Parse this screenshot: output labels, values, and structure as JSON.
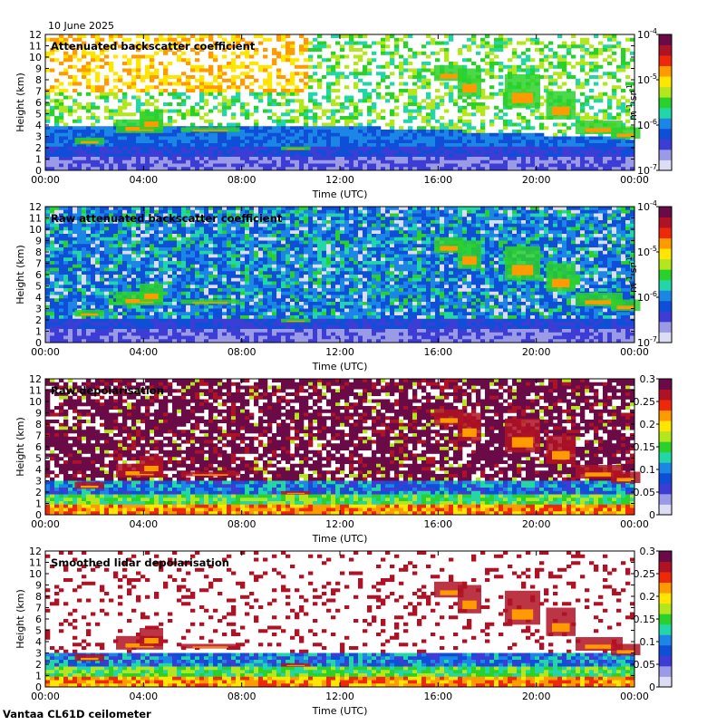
{
  "date_label": "10 June 2025",
  "footer_label": "Vantaa CL61D ceilometer",
  "chart_data": [
    {
      "type": "heatmap",
      "title": "Attenuated backscatter coefficient",
      "xlabel": "Time (UTC)",
      "ylabel": "Height (km)",
      "xticks": [
        "00:00",
        "04:00",
        "08:00",
        "12:00",
        "16:00",
        "20:00",
        "00:00"
      ],
      "yticks": [
        0,
        1,
        2,
        3,
        4,
        5,
        6,
        7,
        8,
        9,
        10,
        11,
        12
      ],
      "ylim": [
        0,
        12
      ],
      "colorbar": {
        "scale": "log",
        "range": [
          1e-07,
          0.0001
        ],
        "tick_labels": [
          {
            "base": "10",
            "exp": "-4"
          },
          {
            "base": "10",
            "exp": "-5"
          },
          {
            "base": "10",
            "exp": "-6"
          },
          {
            "base": "10",
            "exp": "-7"
          }
        ],
        "unit": {
          "a": "m",
          "a_exp": "-1",
          "b": "sr",
          "b_exp": "-1"
        },
        "colors": [
          "#dcdcf4",
          "#9a9ae6",
          "#3d3dd6",
          "#0f4fd8",
          "#1b86e6",
          "#22d6a8",
          "#2bd12b",
          "#b4e61e",
          "#ffe600",
          "#ff9a00",
          "#f0280a",
          "#b01225",
          "#6a0a47"
        ]
      }
    },
    {
      "type": "heatmap",
      "title": "Raw attenuated backscatter coefficient",
      "xlabel": "Time (UTC)",
      "ylabel": "Height (km)",
      "xticks": [
        "00:00",
        "04:00",
        "08:00",
        "12:00",
        "16:00",
        "20:00",
        "00:00"
      ],
      "yticks": [
        0,
        1,
        2,
        3,
        4,
        5,
        6,
        7,
        8,
        9,
        10,
        11,
        12
      ],
      "ylim": [
        0,
        12
      ],
      "colorbar": {
        "scale": "log",
        "range": [
          1e-07,
          0.0001
        ],
        "tick_labels": [
          {
            "base": "10",
            "exp": "-4"
          },
          {
            "base": "10",
            "exp": "-5"
          },
          {
            "base": "10",
            "exp": "-6"
          },
          {
            "base": "10",
            "exp": "-7"
          }
        ],
        "unit": {
          "a": "m",
          "a_exp": "-1",
          "b": "sr",
          "b_exp": "-1"
        },
        "colors": [
          "#dcdcf4",
          "#9a9ae6",
          "#3d3dd6",
          "#0f4fd8",
          "#1b86e6",
          "#22d6a8",
          "#2bd12b",
          "#b4e61e",
          "#ffe600",
          "#ff9a00",
          "#f0280a",
          "#b01225",
          "#6a0a47"
        ]
      }
    },
    {
      "type": "heatmap",
      "title": "Raw depolarisation",
      "xlabel": "Time (UTC)",
      "ylabel": "Height (km)",
      "xticks": [
        "00:00",
        "04:00",
        "08:00",
        "12:00",
        "16:00",
        "20:00",
        "00:00"
      ],
      "yticks": [
        0,
        1,
        2,
        3,
        4,
        5,
        6,
        7,
        8,
        9,
        10,
        11,
        12
      ],
      "ylim": [
        0,
        12
      ],
      "colorbar": {
        "scale": "linear",
        "range": [
          0,
          0.3
        ],
        "tick_labels": [
          "0.3",
          "0.25",
          "0.2",
          "0.15",
          "0.1",
          "0.05",
          "0"
        ],
        "colors": [
          "#dcdcf4",
          "#9a9ae6",
          "#3d3dd6",
          "#0f4fd8",
          "#1b86e6",
          "#22d6a8",
          "#2bd12b",
          "#b4e61e",
          "#ffe600",
          "#ff9a00",
          "#f0280a",
          "#b01225",
          "#6a0a47"
        ]
      }
    },
    {
      "type": "heatmap",
      "title": "Smoothed lidar depolarisation",
      "xlabel": "Time (UTC)",
      "ylabel": "Height (km)",
      "xticks": [
        "00:00",
        "04:00",
        "08:00",
        "12:00",
        "16:00",
        "20:00",
        "00:00"
      ],
      "yticks": [
        0,
        1,
        2,
        3,
        4,
        5,
        6,
        7,
        8,
        9,
        10,
        11,
        12
      ],
      "ylim": [
        0,
        12
      ],
      "colorbar": {
        "scale": "linear",
        "range": [
          0,
          0.3
        ],
        "tick_labels": [
          "0.3",
          "0.25",
          "0.2",
          "0.15",
          "0.1",
          "0.05",
          "0"
        ],
        "colors": [
          "#dcdcf4",
          "#9a9ae6",
          "#3d3dd6",
          "#0f4fd8",
          "#1b86e6",
          "#22d6a8",
          "#2bd12b",
          "#b4e61e",
          "#ffe600",
          "#ff9a00",
          "#f0280a",
          "#b01225",
          "#6a0a47"
        ]
      }
    }
  ]
}
